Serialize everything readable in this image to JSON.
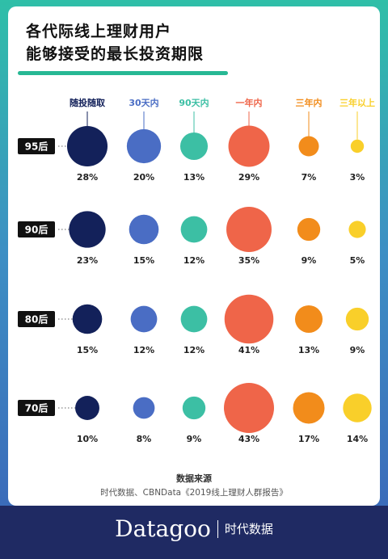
{
  "title": {
    "line1": "各代际线上理财用户",
    "line2": "能够接受的最长投资期限"
  },
  "source": {
    "heading": "数据来源",
    "text": "时代数据、CBNData《2019线上理财人群报告》"
  },
  "brand": {
    "name": "Datagoo",
    "cn": "时代数据"
  },
  "chart_data": {
    "type": "bubble",
    "columns": [
      {
        "label": "随投随取",
        "color": "#13215a"
      },
      {
        "label": "30天内",
        "color": "#4a6dc4"
      },
      {
        "label": "90天内",
        "color": "#3cbfa4"
      },
      {
        "label": "一年内",
        "color": "#ef6549"
      },
      {
        "label": "三年内",
        "color": "#f28c1b"
      },
      {
        "label": "三年以上",
        "color": "#f9cf2a"
      }
    ],
    "rows": [
      {
        "label": "95后",
        "values": [
          28,
          20,
          13,
          29,
          7,
          3
        ],
        "value_labels": [
          "28%",
          "20%",
          "13%",
          "29%",
          "7%",
          "3%"
        ]
      },
      {
        "label": "90后",
        "values": [
          23,
          15,
          12,
          35,
          9,
          5
        ],
        "value_labels": [
          "23%",
          "15%",
          "12%",
          "35%",
          "9%",
          "5%"
        ]
      },
      {
        "label": "80后",
        "values": [
          15,
          12,
          12,
          41,
          13,
          9
        ],
        "value_labels": [
          "15%",
          "12%",
          "12%",
          "41%",
          "13%",
          "9%"
        ]
      },
      {
        "label": "70后",
        "values": [
          10,
          8,
          9,
          43,
          17,
          14
        ],
        "value_labels": [
          "10%",
          "8%",
          "9%",
          "43%",
          "17%",
          "14%"
        ]
      }
    ]
  }
}
